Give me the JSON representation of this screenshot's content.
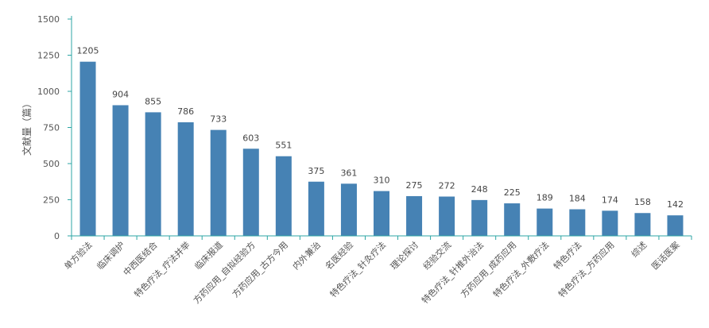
{
  "chart_data": {
    "type": "bar",
    "ylabel": "文献量（篇）",
    "ylim": [
      0,
      1500
    ],
    "yticks": [
      0,
      250,
      500,
      750,
      1000,
      1250,
      1500
    ],
    "grid": false,
    "legend": "none",
    "categories": [
      "单方验法",
      "临床调护",
      "中西医结合",
      "特色疗法_疗法并举",
      "临床报道",
      "方药应用_自拟经验方",
      "方药应用_古方今用",
      "内外兼治",
      "名医经验",
      "特色疗法_针灸疗法",
      "理论探讨",
      "经验交流",
      "特色疗法_针推外治法",
      "方药应用_成药应用",
      "特色疗法_外敷疗法",
      "特色疗法",
      "特色疗法_方药应用",
      "综述",
      "医话医案"
    ],
    "values": [
      1205,
      904,
      855,
      786,
      733,
      603,
      551,
      375,
      361,
      310,
      275,
      272,
      248,
      225,
      189,
      184,
      174,
      158,
      142
    ],
    "colors": {
      "bar": "#4682b4",
      "axis": "#2ca6a4",
      "text": "#555555"
    }
  }
}
